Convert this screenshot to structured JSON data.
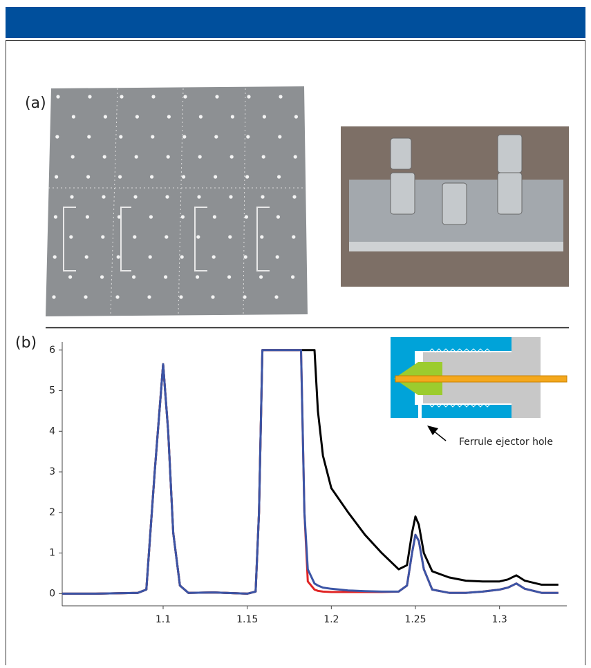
{
  "figure": {
    "panel_a": {
      "label": "(a)"
    },
    "panel_b": {
      "label": "(b)"
    }
  },
  "chart_data": {
    "type": "line",
    "annotation": "Ferrule ejector hole",
    "x": [
      1.04,
      1.06,
      1.085,
      1.09,
      1.095,
      1.1,
      1.103,
      1.106,
      1.11,
      1.115,
      1.13,
      1.15,
      1.155,
      1.157,
      1.159,
      1.17,
      1.182,
      1.184,
      1.186,
      1.19,
      1.192,
      1.195,
      1.2,
      1.21,
      1.22,
      1.23,
      1.24,
      1.245,
      1.248,
      1.25,
      1.252,
      1.255,
      1.26,
      1.27,
      1.28,
      1.29,
      1.3,
      1.305,
      1.31,
      1.315,
      1.325,
      1.335
    ],
    "series": [
      {
        "color": "#000000",
        "values": [
          0,
          0,
          0.02,
          0.1,
          3,
          5.65,
          4,
          1.5,
          0.2,
          0.02,
          0.03,
          0,
          0.05,
          2,
          6,
          6,
          6,
          6,
          6,
          6,
          4.5,
          3.4,
          2.6,
          2.0,
          1.45,
          1.0,
          0.6,
          0.7,
          1.5,
          1.9,
          1.7,
          1.0,
          0.55,
          0.4,
          0.32,
          0.3,
          0.3,
          0.35,
          0.45,
          0.32,
          0.22,
          0.22
        ]
      },
      {
        "color": "#e02424",
        "values": [
          0,
          0,
          0.02,
          0.1,
          3,
          5.65,
          4,
          1.5,
          0.2,
          0.02,
          0.03,
          0,
          0.05,
          2,
          6,
          6,
          6,
          2,
          0.3,
          0.1,
          0.07,
          0.05,
          0.04,
          0.04,
          0.04,
          0.04,
          0.05,
          0.2,
          1.0,
          1.45,
          1.3,
          0.6,
          0.1,
          0.02,
          0.02,
          0.05,
          0.1,
          0.15,
          0.25,
          0.12,
          0.02,
          0.02
        ]
      },
      {
        "color": "#3b55a6",
        "values": [
          0,
          0,
          0.02,
          0.1,
          3,
          5.65,
          4,
          1.5,
          0.2,
          0.02,
          0.03,
          0,
          0.05,
          2,
          6,
          6,
          6,
          2,
          0.6,
          0.25,
          0.2,
          0.15,
          0.12,
          0.08,
          0.06,
          0.05,
          0.05,
          0.2,
          1.0,
          1.45,
          1.3,
          0.6,
          0.1,
          0.02,
          0.02,
          0.05,
          0.1,
          0.15,
          0.25,
          0.12,
          0.02,
          0.02
        ]
      }
    ],
    "xlim": [
      1.04,
      1.34
    ],
    "xticks": [
      1.1,
      1.15,
      1.2,
      1.25,
      1.3
    ],
    "ylim": [
      -0.3,
      6.2
    ],
    "yticks": [
      0,
      1,
      2,
      3,
      4,
      5,
      6
    ]
  }
}
